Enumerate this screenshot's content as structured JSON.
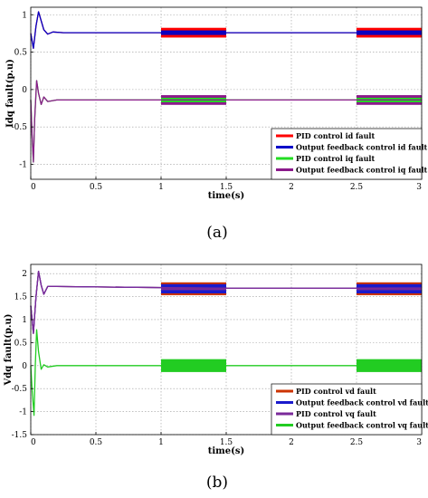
{
  "chart_data": [
    {
      "type": "line",
      "caption": "(a)",
      "xlabel": "time(s)",
      "ylabel": "Idq fault(p.u)",
      "xlim": [
        0,
        3
      ],
      "ylim": [
        -1.2,
        1.1
      ],
      "xticks": [
        0,
        0.5,
        1,
        1.5,
        2,
        2.5,
        3
      ],
      "xtick_labels": [
        "0",
        "0.5",
        "1",
        "1.5",
        "2",
        "2.5",
        "3"
      ],
      "yticks": [
        -1,
        -0.5,
        0,
        0.5,
        1
      ],
      "ytick_labels": [
        "-1",
        "-0.5",
        "0",
        "0.5",
        "1"
      ],
      "grid": true,
      "legend_position": "lower-right",
      "fault_windows": [
        [
          1,
          1.5
        ],
        [
          2.5,
          3
        ]
      ],
      "series": [
        {
          "name": "PID control id fault",
          "color": "#ff0000",
          "steady": 0.76,
          "band": 0.13,
          "points": [
            [
              0,
              0.75
            ],
            [
              0.02,
              0.55
            ],
            [
              0.04,
              0.85
            ],
            [
              0.06,
              1.04
            ],
            [
              0.08,
              0.92
            ],
            [
              0.1,
              0.8
            ],
            [
              0.13,
              0.74
            ],
            [
              0.17,
              0.77
            ],
            [
              0.25,
              0.76
            ],
            [
              3,
              0.76
            ]
          ]
        },
        {
          "name": "Output feedback control id fault",
          "color": "#0000c8",
          "steady": 0.76,
          "band": 0.06,
          "points": [
            [
              0,
              0.75
            ],
            [
              0.02,
              0.55
            ],
            [
              0.04,
              0.85
            ],
            [
              0.06,
              1.04
            ],
            [
              0.08,
              0.92
            ],
            [
              0.1,
              0.8
            ],
            [
              0.13,
              0.74
            ],
            [
              0.17,
              0.77
            ],
            [
              0.25,
              0.76
            ],
            [
              3,
              0.76
            ]
          ]
        },
        {
          "name": "PID control iq fault",
          "color": "#22dd22",
          "steady": -0.14,
          "band": 0.06,
          "points": [
            [
              0,
              -0.14
            ],
            [
              0.01,
              -0.6
            ],
            [
              0.02,
              -0.97
            ],
            [
              0.03,
              -0.4
            ],
            [
              0.045,
              0.12
            ],
            [
              0.06,
              -0.05
            ],
            [
              0.08,
              -0.2
            ],
            [
              0.1,
              -0.1
            ],
            [
              0.13,
              -0.16
            ],
            [
              0.2,
              -0.14
            ],
            [
              3,
              -0.14
            ]
          ]
        },
        {
          "name": "Output feedback control iq fault",
          "color": "#8b1a8b",
          "steady": -0.14,
          "band": 0.13,
          "points": [
            [
              0,
              -0.14
            ],
            [
              0.01,
              -0.6
            ],
            [
              0.02,
              -0.97
            ],
            [
              0.03,
              -0.4
            ],
            [
              0.045,
              0.12
            ],
            [
              0.06,
              -0.05
            ],
            [
              0.08,
              -0.2
            ],
            [
              0.1,
              -0.1
            ],
            [
              0.13,
              -0.16
            ],
            [
              0.2,
              -0.14
            ],
            [
              3,
              -0.14
            ]
          ]
        }
      ]
    },
    {
      "type": "line",
      "caption": "(b)",
      "xlabel": "time(s)",
      "ylabel": "Vdq fault(p.u)",
      "xlim": [
        0,
        3
      ],
      "ylim": [
        -1.5,
        2.2
      ],
      "xticks": [
        0,
        0.5,
        1,
        1.5,
        2,
        2.5,
        3
      ],
      "xtick_labels": [
        "0",
        "0.5",
        "1",
        "1.5",
        "2",
        "2.5",
        "3"
      ],
      "yticks": [
        -1.5,
        -1,
        -0.5,
        0,
        0.5,
        1,
        1.5,
        2
      ],
      "ytick_labels": [
        "-1.5",
        "-1",
        "-0.5",
        "0",
        "0.5",
        "1",
        "1.5",
        "2"
      ],
      "grid": true,
      "legend_position": "lower-right",
      "fault_windows": [
        [
          1,
          1.5
        ],
        [
          2.5,
          3
        ]
      ],
      "series": [
        {
          "name": "PID control vd fault",
          "color": "#cc3300",
          "steady": 1.67,
          "band": 0.28,
          "points": [
            [
              0,
              1.3
            ],
            [
              0.02,
              0.7
            ],
            [
              0.04,
              1.5
            ],
            [
              0.06,
              2.05
            ],
            [
              0.08,
              1.75
            ],
            [
              0.1,
              1.55
            ],
            [
              0.13,
              1.72
            ],
            [
              0.2,
              1.72
            ],
            [
              1.5,
              1.68
            ],
            [
              2.5,
              1.68
            ],
            [
              3,
              1.67
            ]
          ]
        },
        {
          "name": "Output feedback control vd fault",
          "color": "#1a1acc",
          "steady": 1.67,
          "band": 0.2,
          "points": [
            [
              0,
              1.3
            ],
            [
              0.02,
              0.7
            ],
            [
              0.04,
              1.5
            ],
            [
              0.06,
              2.05
            ],
            [
              0.08,
              1.75
            ],
            [
              0.1,
              1.55
            ],
            [
              0.13,
              1.72
            ],
            [
              0.2,
              1.72
            ],
            [
              1.5,
              1.68
            ],
            [
              2.5,
              1.68
            ],
            [
              3,
              1.67
            ]
          ]
        },
        {
          "name": "PID control vq fault",
          "color": "#7a2a9a",
          "steady": 1.67,
          "band": 0.06,
          "points": [
            [
              0,
              1.3
            ],
            [
              0.02,
              0.7
            ],
            [
              0.04,
              1.5
            ],
            [
              0.06,
              2.05
            ],
            [
              0.08,
              1.75
            ],
            [
              0.1,
              1.55
            ],
            [
              0.13,
              1.72
            ],
            [
              0.2,
              1.72
            ],
            [
              1.5,
              1.68
            ],
            [
              2.5,
              1.68
            ],
            [
              3,
              1.67
            ]
          ]
        },
        {
          "name": "Output feedback control vq fault",
          "color": "#22cc22",
          "steady": 0.0,
          "band": 0.28,
          "points": [
            [
              0,
              0.0
            ],
            [
              0.01,
              -0.5
            ],
            [
              0.025,
              -1.08
            ],
            [
              0.035,
              0.0
            ],
            [
              0.045,
              0.78
            ],
            [
              0.06,
              0.3
            ],
            [
              0.08,
              -0.08
            ],
            [
              0.1,
              0.02
            ],
            [
              0.13,
              -0.03
            ],
            [
              0.2,
              0.0
            ],
            [
              3,
              0.0
            ]
          ]
        }
      ]
    }
  ]
}
